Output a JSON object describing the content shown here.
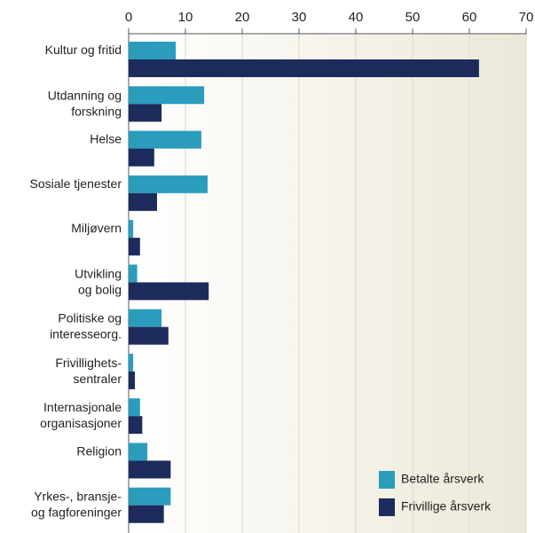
{
  "chart_data": {
    "type": "hbar",
    "categories": [
      [
        "Kultur og fritid"
      ],
      [
        "Utdanning og",
        "forskning"
      ],
      [
        "Helse"
      ],
      [
        "Sosiale tjenester"
      ],
      [
        "Miljøvern"
      ],
      [
        "Utvikling",
        "og bolig"
      ],
      [
        "Politiske og",
        "interesseorg."
      ],
      [
        "Frivillighets-",
        "sentraler"
      ],
      [
        "Internasjonale",
        "organisasjoner"
      ],
      [
        "Religion"
      ],
      [
        "Yrkes-, bransje-",
        "og fagforeninger"
      ]
    ],
    "series": [
      {
        "name": "Betalte årsverk",
        "color": "#2a9dbd",
        "values": [
          8.3,
          13.3,
          12.8,
          13.9,
          0.8,
          1.5,
          5.8,
          0.8,
          2.0,
          3.3,
          7.4
        ]
      },
      {
        "name": "Frivillige årsverk",
        "color": "#1d2b5c",
        "values": [
          61.7,
          5.8,
          4.5,
          5.0,
          2.0,
          14.1,
          7.0,
          1.1,
          2.4,
          7.4,
          6.2
        ]
      }
    ],
    "xlim": [
      0,
      70
    ],
    "xticks": [
      0,
      10,
      20,
      30,
      40,
      50,
      60,
      70
    ],
    "grid": true,
    "legend": "lower right"
  }
}
